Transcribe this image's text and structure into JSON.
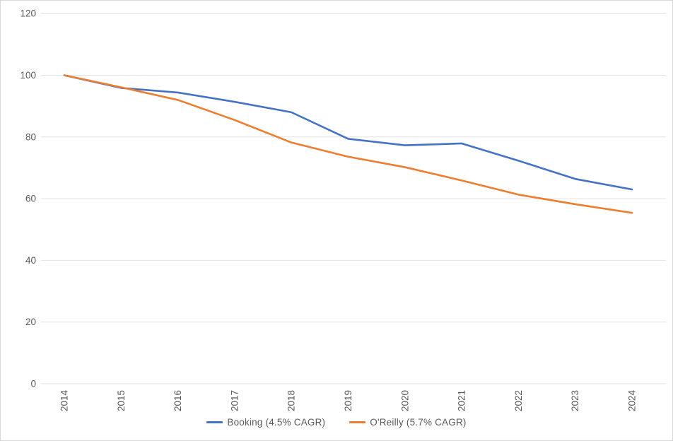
{
  "chart_data": {
    "type": "line",
    "title": "",
    "xlabel": "",
    "ylabel": "",
    "x": [
      2014,
      2015,
      2016,
      2017,
      2018,
      2019,
      2020,
      2021,
      2022,
      2023,
      2024
    ],
    "series": [
      {
        "name": "Booking (4.5% CAGR)",
        "color": "#4472C4",
        "values": [
          100,
          95.9,
          94.4,
          91.4,
          88.0,
          79.4,
          77.3,
          77.9,
          72.3,
          66.4,
          63.0
        ]
      },
      {
        "name": "O'Reilly (5.7% CAGR)",
        "color": "#ED7D31",
        "values": [
          100,
          96.1,
          92.0,
          85.5,
          78.2,
          73.6,
          70.2,
          65.9,
          61.3,
          58.2,
          55.4
        ]
      }
    ],
    "ylim": [
      0,
      120
    ],
    "yticks": [
      0,
      20,
      40,
      60,
      80,
      100,
      120
    ],
    "grid": true,
    "gridline_color": "#e2e2e2",
    "axis_label_color": "#595959",
    "legend_position": "bottom"
  }
}
